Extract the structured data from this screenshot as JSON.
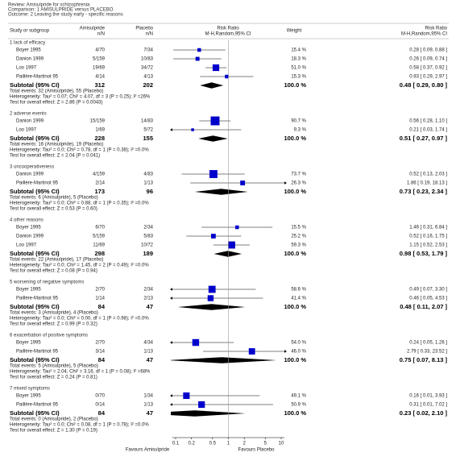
{
  "header": {
    "review": "Review:  Amisulpride for schizophrenia",
    "comparison": "Comparison:  1 AMISULPRIDE versus PLACEBO",
    "outcome": "Outcome:  2 Leaving the study early - specific reasons"
  },
  "columns": {
    "study": "Study or subgroup",
    "treatment": "Amisulpride",
    "treatment_unit": "n/N",
    "control": "Placebo",
    "control_unit": "n/N",
    "plot": "Risk Ratio",
    "plot_method": "M-H,Random,95% CI",
    "weight": "Weight",
    "effect": "Risk Ratio",
    "effect_method": "M-H,Random,95% CI"
  },
  "chart_data": {
    "type": "forest",
    "xscale": "log",
    "xlim": [
      0.1,
      10
    ],
    "xticks": [
      0.1,
      0.2,
      0.5,
      1,
      2,
      5,
      10
    ],
    "color": "#0000cc",
    "favours_left": "Favours Amisulpride",
    "favours_right": "Favours Placebo",
    "subgroups": [
      {
        "name": "1 lack of efficacy",
        "studies": [
          {
            "name": "Boyer 1995",
            "treatment": "4/70",
            "control": "7/34",
            "weight": 15.4,
            "weight_label": "15.4 %",
            "rr": 0.28,
            "ci": [
              0.09,
              0.88
            ],
            "rr_label": "0.28 [ 0.09, 0.88 ]"
          },
          {
            "name": "Danion 1999",
            "treatment": "5/159",
            "control": "10/83",
            "weight": 18.3,
            "weight_label": "18.3 %",
            "rr": 0.26,
            "ci": [
              0.09,
              0.74
            ],
            "rr_label": "0.26 [ 0.09, 0.74 ]"
          },
          {
            "name": "Loo 1997",
            "treatment": "19/69",
            "control": "34/72",
            "weight": 51.0,
            "weight_label": "51.0 %",
            "rr": 0.58,
            "ci": [
              0.37,
              0.92
            ],
            "rr_label": "0.58 [ 0.37, 0.92 ]"
          },
          {
            "name": "Paillère-Martinot 95",
            "treatment": "4/14",
            "control": "4/13",
            "weight": 15.3,
            "weight_label": "15.3 %",
            "rr": 0.93,
            "ci": [
              0.29,
              2.97
            ],
            "rr_label": "0.93 [ 0.29, 2.97 ]"
          }
        ],
        "subtotal": {
          "name": "Subtotal (95% CI)",
          "treatment": 312,
          "control": 202,
          "weight_label": "100.0 %",
          "rr": 0.48,
          "ci": [
            0.29,
            0.8
          ],
          "rr_label": "0.48 [ 0.29, 0.80 ]"
        },
        "notes": [
          "Total events: 32 (Amisulpride), 55 (Placebo)",
          "Heterogeneity: Tau² = 0.07; Chi² = 4.07, df = 3 (P = 0.25); I² =26%",
          "Test for overall effect: Z = 2.86 (P = 0.0043)"
        ]
      },
      {
        "name": "2 adverse events",
        "studies": [
          {
            "name": "Danion 1999",
            "treatment": "15/159",
            "control": "14/83",
            "weight": 90.7,
            "weight_label": "90.7 %",
            "rr": 0.56,
            "ci": [
              0.28,
              1.1
            ],
            "rr_label": "0.56 [ 0.28, 1.10 ]"
          },
          {
            "name": "Loo 1997",
            "treatment": "1/69",
            "control": "5/72",
            "weight": 9.3,
            "weight_label": "9.3 %",
            "rr": 0.21,
            "ci": [
              0.03,
              1.74
            ],
            "rr_label": "0.21 [ 0.03, 1.74 ]"
          }
        ],
        "subtotal": {
          "name": "Subtotal (95% CI)",
          "treatment": 228,
          "control": 155,
          "weight_label": "100.0 %",
          "rr": 0.51,
          "ci": [
            0.27,
            0.97
          ],
          "rr_label": "0.51 [ 0.27, 0.97 ]"
        },
        "notes": [
          "Total events: 16 (Amisulpride), 19 (Placebo)",
          "Heterogeneity: Tau² = 0.0; Chi² = 0.78, df = 1 (P = 0.38); I² =0.0%",
          "Test for overall effect: Z = 2.04 (P = 0.041)"
        ]
      },
      {
        "name": "3 uncooperativeness",
        "studies": [
          {
            "name": "Danion 1999",
            "treatment": "4/159",
            "control": "4/83",
            "weight": 73.7,
            "weight_label": "73.7 %",
            "rr": 0.52,
            "ci": [
              0.13,
              2.03
            ],
            "rr_label": "0.52 [ 0.13, 2.03 ]"
          },
          {
            "name": "Paillère-Martinot 95",
            "treatment": "2/14",
            "control": "1/13",
            "weight": 26.3,
            "weight_label": "26.3 %",
            "rr": 1.86,
            "ci": [
              0.19,
              18.13
            ],
            "rr_label": "1.86 [ 0.19, 18.13 ]"
          }
        ],
        "subtotal": {
          "name": "Subtotal (95% CI)",
          "treatment": 173,
          "control": 96,
          "weight_label": "100.0 %",
          "rr": 0.73,
          "ci": [
            0.23,
            2.34
          ],
          "rr_label": "0.73 [ 0.23, 2.34 ]"
        },
        "notes": [
          "Total events: 6 (Amisulpride), 5 (Placebo)",
          "Heterogeneity: Tau² = 0.0; Chi² = 0.88, df = 1 (P = 0.35); I² =0.0%",
          "Test for overall effect: Z = 0.53 (P = 0.60)"
        ]
      },
      {
        "name": "4 other reasons",
        "studies": [
          {
            "name": "Boyer 1995",
            "treatment": "6/70",
            "control": "2/34",
            "weight": 15.5,
            "weight_label": "15.5 %",
            "rr": 1.46,
            "ci": [
              0.31,
              6.84
            ],
            "rr_label": "1.46 [ 0.31, 6.84 ]"
          },
          {
            "name": "Danion 1999",
            "treatment": "5/159",
            "control": "5/83",
            "weight": 25.2,
            "weight_label": "25.2 %",
            "rr": 0.52,
            "ci": [
              0.16,
              1.75
            ],
            "rr_label": "0.52 [ 0.16, 1.75 ]"
          },
          {
            "name": "Loo 1997",
            "treatment": "11/69",
            "control": "10/72",
            "weight": 59.3,
            "weight_label": "59.3 %",
            "rr": 1.15,
            "ci": [
              0.52,
              2.53
            ],
            "rr_label": "1.15 [ 0.52, 2.53 ]"
          }
        ],
        "subtotal": {
          "name": "Subtotal (95% CI)",
          "treatment": 298,
          "control": 189,
          "weight_label": "100.0 %",
          "rr": 0.98,
          "ci": [
            0.53,
            1.79
          ],
          "rr_label": "0.98 [ 0.53, 1.79 ]"
        },
        "notes": [
          "Total events: 22 (Amisulpride), 17 (Placebo)",
          "Heterogeneity: Tau² = 0.0; Chi² = 1.45, df = 2 (P = 0.49); I² =0.0%",
          "Test for overall effect: Z = 0.08 (P = 0.94)"
        ]
      },
      {
        "name": "5 worsening of negative symptoms",
        "studies": [
          {
            "name": "Boyer 1995",
            "treatment": "2/70",
            "control": "2/34",
            "weight": 58.6,
            "weight_label": "58.6 %",
            "rr": 0.49,
            "ci": [
              0.07,
              3.3
            ],
            "rr_label": "0.49 [ 0.07, 3.30 ]"
          },
          {
            "name": "Paillère-Martinot 95",
            "treatment": "1/14",
            "control": "2/13",
            "weight": 41.4,
            "weight_label": "41.4 %",
            "rr": 0.46,
            "ci": [
              0.05,
              4.53
            ],
            "rr_label": "0.46 [ 0.05, 4.53 ]"
          }
        ],
        "subtotal": {
          "name": "Subtotal (95% CI)",
          "treatment": 84,
          "control": 47,
          "weight_label": "100.0 %",
          "rr": 0.48,
          "ci": [
            0.11,
            2.07
          ],
          "rr_label": "0.48 [ 0.11, 2.07 ]"
        },
        "notes": [
          "Total events: 3 (Amisulpride), 4 (Placebo)",
          "Heterogeneity: Tau² = 0.0; Chi² = 0.00, df = 1 (P = 0.98); I² =0.0%",
          "Test for overall effect: Z = 0.99 (P = 0.32)"
        ]
      },
      {
        "name": "6 exacerbation of positive symptoms",
        "studies": [
          {
            "name": "Boyer 1995",
            "treatment": "2/70",
            "control": "4/34",
            "weight": 54.0,
            "weight_label": "54.0 %",
            "rr": 0.24,
            "ci": [
              0.05,
              1.26
            ],
            "rr_label": "0.24 [ 0.05, 1.26 ]"
          },
          {
            "name": "Paillère-Martinot 95",
            "treatment": "3/14",
            "control": "1/13",
            "weight": 46.0,
            "weight_label": "46.0 %",
            "rr": 2.79,
            "ci": [
              0.33,
              23.52
            ],
            "rr_label": "2.79 [ 0.33, 23.52 ]"
          }
        ],
        "subtotal": {
          "name": "Subtotal (95% CI)",
          "treatment": 84,
          "control": 47,
          "weight_label": "100.0 %",
          "rr": 0.75,
          "ci": [
            0.07,
            8.13
          ],
          "rr_label": "0.75 [ 0.07, 8.13 ]"
        },
        "notes": [
          "Total events: 5 (Amisulpride), 5 (Placebo)",
          "Heterogeneity: Tau² = 2.04; Chi² = 3.16, df = 1 (P = 0.08); I² =68%",
          "Test for overall effect: Z = 0.24 (P = 0.81)"
        ]
      },
      {
        "name": "7 mixed symptoms",
        "studies": [
          {
            "name": "Boyer 1995",
            "treatment": "0/70",
            "control": "1/34",
            "weight": 49.1,
            "weight_label": "49.1 %",
            "rr": 0.16,
            "ci": [
              0.01,
              3.93
            ],
            "rr_label": "0.16 [ 0.01, 3.93 ]"
          },
          {
            "name": "Paillère-Martinot 95",
            "treatment": "0/14",
            "control": "1/13",
            "weight": 50.9,
            "weight_label": "50.9 %",
            "rr": 0.31,
            "ci": [
              0.01,
              7.02
            ],
            "rr_label": "0.31 [ 0.01, 7.02 ]"
          }
        ],
        "subtotal": {
          "name": "Subtotal (95% CI)",
          "treatment": 84,
          "control": 47,
          "weight_label": "100.0 %",
          "rr": 0.23,
          "ci": [
            0.02,
            2.1
          ],
          "rr_label": "0.23 [ 0.02, 2.10 ]"
        },
        "notes": [
          "Total events: 0 (Amisulpride), 2 (Placebo)",
          "Heterogeneity: Tau² = 0.0; Chi² = 0.08, df = 1 (P = 0.78); I² =0.0%",
          "Test for overall effect: Z = 1.30 (P = 0.19)"
        ]
      }
    ]
  }
}
